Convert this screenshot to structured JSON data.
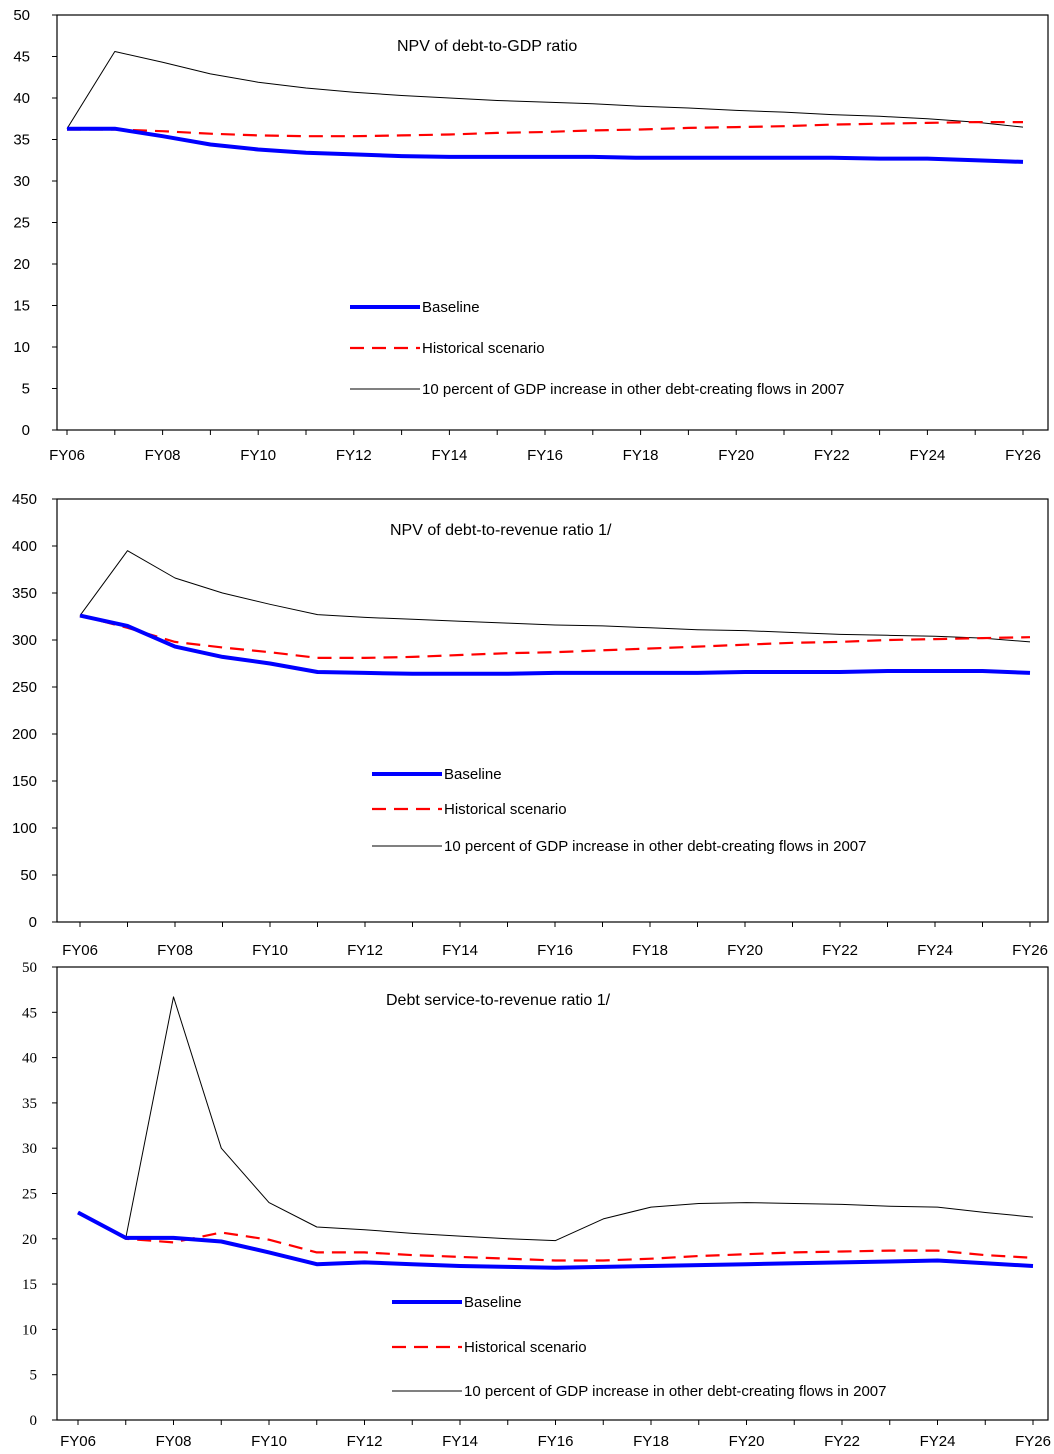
{
  "colors": {
    "baseline": "#0000ff",
    "historical": "#ff0000",
    "shock": "#000000",
    "axis": "#000000"
  },
  "chart_data": [
    {
      "type": "line",
      "title": "NPV of debt-to-GDP ratio",
      "tick_font": "sans",
      "ylim": [
        0,
        50
      ],
      "yticks": [
        0,
        5,
        10,
        15,
        20,
        25,
        30,
        35,
        40,
        45,
        50
      ],
      "xlabels": [
        "FY06",
        "FY08",
        "FY10",
        "FY12",
        "FY14",
        "FY16",
        "FY18",
        "FY20",
        "FY22",
        "FY24",
        "FY26"
      ],
      "x": [
        2006,
        2007,
        2008,
        2009,
        2010,
        2011,
        2012,
        2013,
        2014,
        2015,
        2016,
        2017,
        2018,
        2019,
        2020,
        2021,
        2022,
        2023,
        2024,
        2025,
        2026
      ],
      "grid": false,
      "legend_position": "center",
      "series": [
        {
          "name": "Baseline",
          "style": "baseline",
          "values": [
            36.3,
            36.3,
            35.4,
            34.4,
            33.8,
            33.4,
            33.2,
            33.0,
            32.9,
            32.9,
            32.9,
            32.9,
            32.8,
            32.8,
            32.8,
            32.8,
            32.8,
            32.7,
            32.7,
            32.5,
            32.3
          ]
        },
        {
          "name": "Historical scenario",
          "style": "historical",
          "values": [
            36.2,
            36.2,
            36.0,
            35.7,
            35.5,
            35.4,
            35.4,
            35.5,
            35.6,
            35.8,
            35.9,
            36.1,
            36.2,
            36.4,
            36.5,
            36.6,
            36.8,
            36.9,
            37.0,
            37.1,
            37.1
          ]
        },
        {
          "name": "10 percent of GDP increase in other debt-creating flows in 2007",
          "style": "shock",
          "values": [
            36.3,
            45.6,
            44.3,
            42.9,
            41.9,
            41.2,
            40.7,
            40.3,
            40.0,
            39.7,
            39.5,
            39.3,
            39.0,
            38.8,
            38.5,
            38.3,
            38.0,
            37.8,
            37.5,
            37.1,
            36.5
          ]
        }
      ]
    },
    {
      "type": "line",
      "title": "NPV of debt-to-revenue ratio 1/",
      "tick_font": "sans",
      "ylim": [
        0,
        450
      ],
      "yticks": [
        0,
        50,
        100,
        150,
        200,
        250,
        300,
        350,
        400,
        450
      ],
      "xlabels": [
        "FY06",
        "FY08",
        "FY10",
        "FY12",
        "FY14",
        "FY16",
        "FY18",
        "FY20",
        "FY22",
        "FY24",
        "FY26"
      ],
      "x": [
        2006,
        2007,
        2008,
        2009,
        2010,
        2011,
        2012,
        2013,
        2014,
        2015,
        2016,
        2017,
        2018,
        2019,
        2020,
        2021,
        2022,
        2023,
        2024,
        2025,
        2026
      ],
      "grid": false,
      "legend_position": "center",
      "series": [
        {
          "name": "Baseline",
          "style": "baseline",
          "values": [
            326,
            315,
            293,
            282,
            275,
            266,
            265,
            264,
            264,
            264,
            265,
            265,
            265,
            265,
            266,
            266,
            266,
            267,
            267,
            267,
            265
          ]
        },
        {
          "name": "Historical scenario",
          "style": "historical",
          "values": [
            326,
            313,
            298,
            292,
            287,
            281,
            281,
            282,
            284,
            286,
            287,
            289,
            291,
            293,
            295,
            297,
            298,
            300,
            301,
            302,
            303
          ]
        },
        {
          "name": "10 percent of GDP increase in other debt-creating flows in 2007",
          "style": "shock",
          "values": [
            326,
            395,
            366,
            350,
            338,
            327,
            324,
            322,
            320,
            318,
            316,
            315,
            313,
            311,
            310,
            308,
            306,
            305,
            304,
            302,
            298
          ]
        }
      ]
    },
    {
      "type": "line",
      "title": "Debt service-to-revenue ratio 1/",
      "tick_font": "serif",
      "ylim": [
        0,
        50
      ],
      "yticks": [
        0,
        5,
        10,
        15,
        20,
        25,
        30,
        35,
        40,
        45,
        50
      ],
      "xlabels": [
        "FY06",
        "FY08",
        "FY10",
        "FY12",
        "FY14",
        "FY16",
        "FY18",
        "FY20",
        "FY22",
        "FY24",
        "FY26"
      ],
      "x": [
        2006,
        2007,
        2008,
        2009,
        2010,
        2011,
        2012,
        2013,
        2014,
        2015,
        2016,
        2017,
        2018,
        2019,
        2020,
        2021,
        2022,
        2023,
        2024,
        2025,
        2026
      ],
      "grid": false,
      "legend_position": "bottom-center",
      "series": [
        {
          "name": "Baseline",
          "style": "baseline",
          "values": [
            22.9,
            20.1,
            20.1,
            19.7,
            18.5,
            17.2,
            17.4,
            17.2,
            17.0,
            16.9,
            16.8,
            16.9,
            17.0,
            17.1,
            17.2,
            17.3,
            17.4,
            17.5,
            17.6,
            17.3,
            17.0
          ]
        },
        {
          "name": "Historical scenario",
          "style": "historical",
          "values": [
            22.9,
            20.0,
            19.6,
            20.7,
            19.9,
            18.5,
            18.5,
            18.2,
            18.0,
            17.8,
            17.6,
            17.6,
            17.8,
            18.1,
            18.3,
            18.5,
            18.6,
            18.7,
            18.7,
            18.2,
            17.9
          ]
        },
        {
          "name": "10 percent of GDP increase in other debt-creating flows in 2007",
          "style": "shock",
          "values": [
            22.9,
            20.1,
            46.7,
            30.0,
            24.0,
            21.3,
            21.0,
            20.6,
            20.3,
            20.0,
            19.8,
            22.2,
            23.5,
            23.9,
            24.0,
            23.9,
            23.8,
            23.6,
            23.5,
            22.9,
            22.4
          ]
        }
      ]
    }
  ]
}
